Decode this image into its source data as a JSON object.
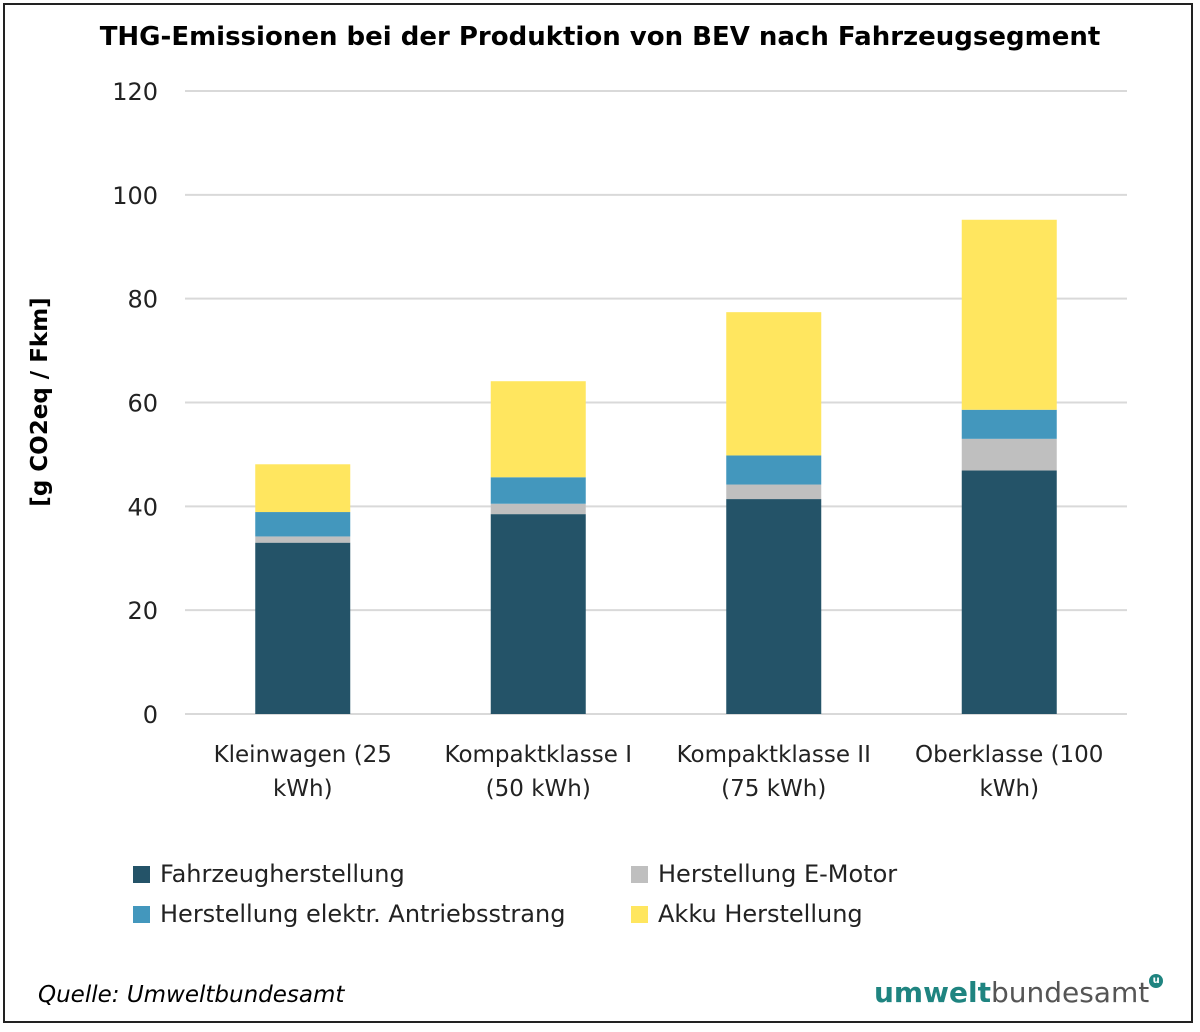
{
  "chart_data": {
    "type": "bar",
    "stacked": true,
    "title": "THG-Emissionen bei der Produktion von BEV nach Fahrzeugsegment",
    "xlabel": "",
    "ylabel": "[g CO2eq / Fkm]",
    "ylim": [
      0,
      120
    ],
    "yticks": [
      0,
      20,
      40,
      60,
      80,
      100,
      120
    ],
    "grid": true,
    "legend_placement": "bottom",
    "categories": [
      [
        "Kleinwagen (25",
        "kWh)"
      ],
      [
        "Kompaktklasse I",
        "(50 kWh)"
      ],
      [
        "Kompaktklasse II",
        "(75 kWh)"
      ],
      [
        "Oberklasse (100",
        "kWh)"
      ]
    ],
    "series": [
      {
        "name": "Fahrzeugherstellung",
        "color": "#245368",
        "values": [
          33.0,
          38.5,
          41.4,
          46.9
        ]
      },
      {
        "name": "Herstellung E-Motor",
        "color": "#bfbfbf",
        "values": [
          1.2,
          2.0,
          2.8,
          6.1
        ]
      },
      {
        "name": "Herstellung elektr. Antriebsstrang",
        "color": "#4397bd",
        "values": [
          4.7,
          5.1,
          5.6,
          5.6
        ]
      },
      {
        "name": "Akku Herstellung",
        "color": "#ffe65f",
        "values": [
          9.2,
          18.5,
          27.6,
          36.6
        ]
      }
    ]
  },
  "source": "Quelle: Umweltbundesamt",
  "logo": {
    "part1": "umwelt",
    "part2": "bundesamt",
    "mark": "u"
  }
}
